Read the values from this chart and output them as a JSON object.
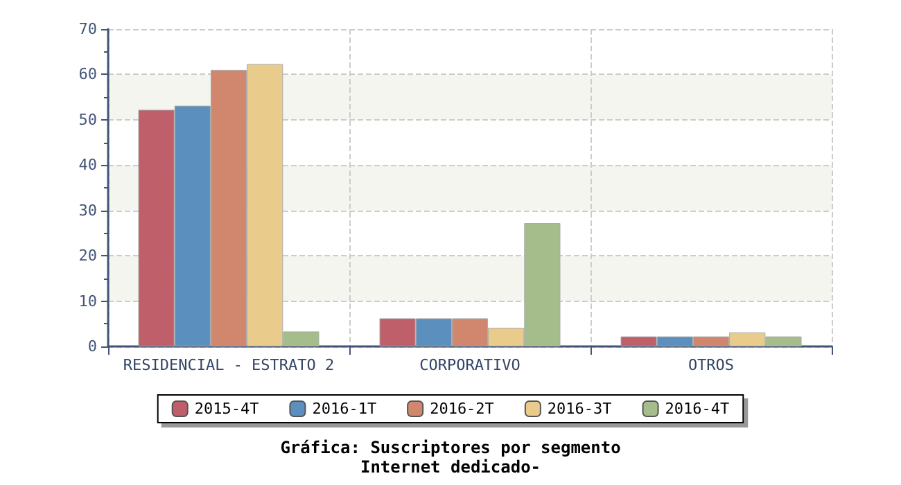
{
  "chart_data": {
    "type": "bar",
    "title": "Gráfica: Suscriptores por segmento",
    "subtitle": "Internet dedicado-",
    "categories": [
      "RESIDENCIAL - ESTRATO 2",
      "CORPORATIVO",
      "OTROS"
    ],
    "series": [
      {
        "name": "2015-4T",
        "color": "#be5f69",
        "values": [
          52.2,
          6.2,
          2.2
        ]
      },
      {
        "name": "2016-1T",
        "color": "#5b8fbe",
        "values": [
          53.1,
          6.2,
          2.2
        ]
      },
      {
        "name": "2016-2T",
        "color": "#d0876d",
        "values": [
          61,
          6.2,
          2.2
        ]
      },
      {
        "name": "2016-3T",
        "color": "#e9cb8c",
        "values": [
          62.3,
          4.1,
          3.1
        ]
      },
      {
        "name": "2016-4T",
        "color": "#a4bd8b",
        "values": [
          3.3,
          27.2,
          2.2
        ]
      }
    ],
    "ylim": [
      0,
      70
    ],
    "yticks": [
      0,
      10,
      20,
      30,
      40,
      50,
      60,
      70
    ],
    "grid": true,
    "legend": "bottom"
  }
}
